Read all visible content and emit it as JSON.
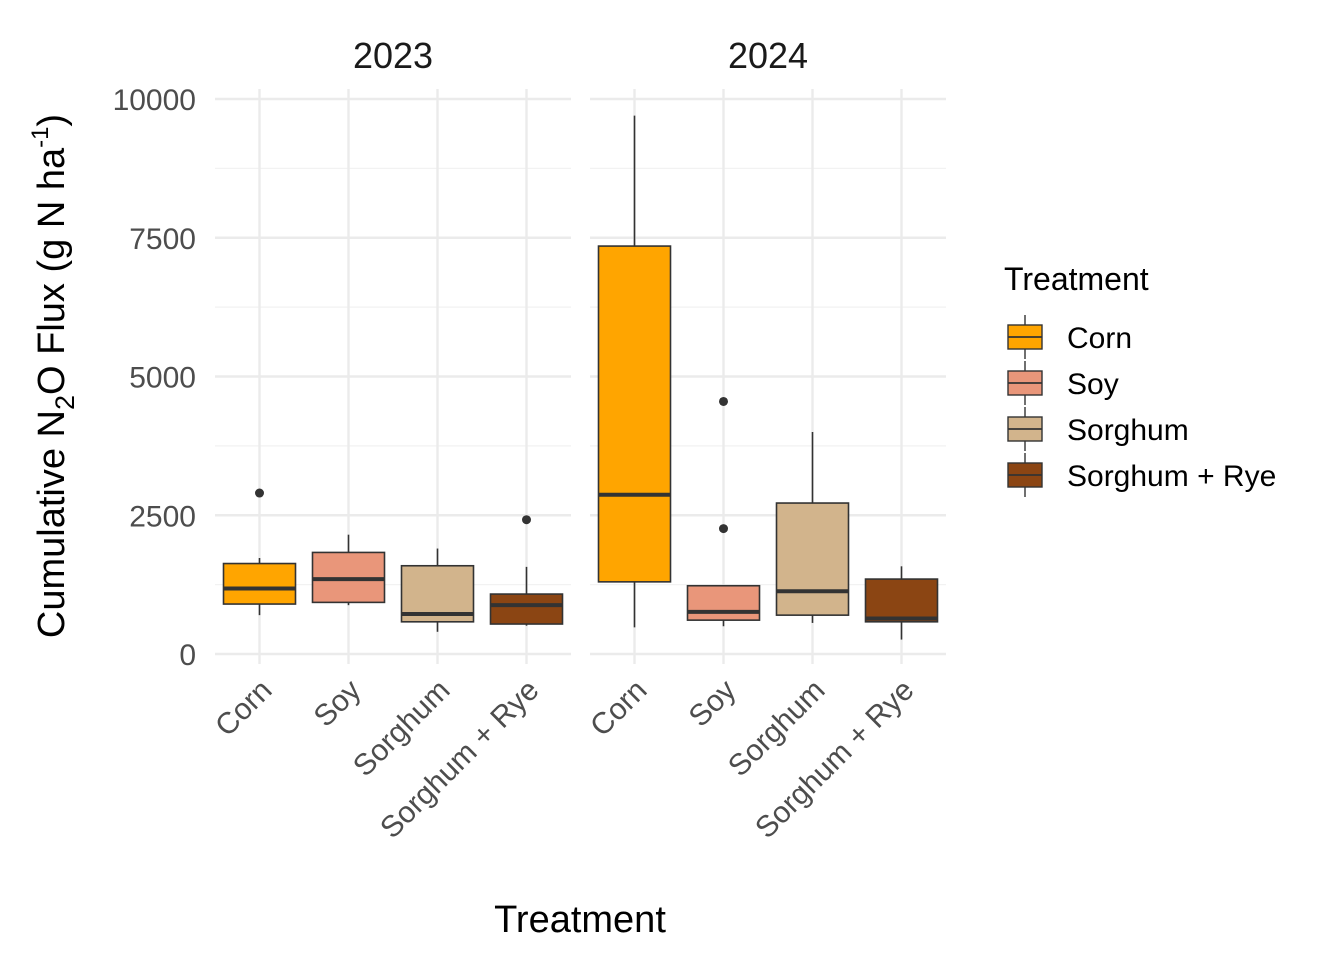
{
  "chart_data": {
    "type": "box",
    "y_axis": {
      "title_parts": [
        "Cumulative N",
        "2",
        "O Flux (g N ha",
        "-1",
        ")"
      ],
      "range": [
        0,
        10000
      ],
      "ticks": [
        0,
        2500,
        5000,
        7500,
        10000
      ],
      "tick_labels": [
        "0",
        "2500",
        "5000",
        "7500",
        "10000"
      ]
    },
    "x_axis": {
      "title": "Treatment",
      "categories": [
        "Corn",
        "Soy",
        "Sorghum",
        "Sorghum + Rye"
      ]
    },
    "legend": {
      "title": "Treatment",
      "position": "right",
      "items": [
        {
          "label": "Corn",
          "color": "#FFA500"
        },
        {
          "label": "Soy",
          "color": "#E9967A"
        },
        {
          "label": "Sorghum",
          "color": "#D2B48C"
        },
        {
          "label": "Sorghum + Rye",
          "color": "#8B4513"
        }
      ]
    },
    "grid": true,
    "facets": [
      {
        "label": "2023",
        "boxes": [
          {
            "category": "Corn",
            "whisker_low": 700,
            "q1": 900,
            "median": 1180,
            "q3": 1630,
            "whisker_high": 1730,
            "outliers": [
              2900
            ]
          },
          {
            "category": "Soy",
            "whisker_low": 880,
            "q1": 930,
            "median": 1350,
            "q3": 1830,
            "whisker_high": 2150,
            "outliers": []
          },
          {
            "category": "Sorghum",
            "whisker_low": 400,
            "q1": 580,
            "median": 720,
            "q3": 1590,
            "whisker_high": 1900,
            "outliers": []
          },
          {
            "category": "Sorghum + Rye",
            "whisker_low": 510,
            "q1": 540,
            "median": 880,
            "q3": 1080,
            "whisker_high": 1570,
            "outliers": [
              2420
            ]
          }
        ]
      },
      {
        "label": "2024",
        "boxes": [
          {
            "category": "Corn",
            "whisker_low": 480,
            "q1": 1300,
            "median": 2870,
            "q3": 7350,
            "whisker_high": 9700,
            "outliers": []
          },
          {
            "category": "Soy",
            "whisker_low": 500,
            "q1": 610,
            "median": 760,
            "q3": 1230,
            "whisker_high": 1230,
            "outliers": [
              2260,
              4550
            ]
          },
          {
            "category": "Sorghum",
            "whisker_low": 560,
            "q1": 700,
            "median": 1130,
            "q3": 2720,
            "whisker_high": 4000,
            "outliers": []
          },
          {
            "category": "Sorghum + Rye",
            "whisker_low": 260,
            "q1": 580,
            "median": 640,
            "q3": 1350,
            "whisker_high": 1580,
            "outliers": []
          }
        ]
      }
    ]
  }
}
